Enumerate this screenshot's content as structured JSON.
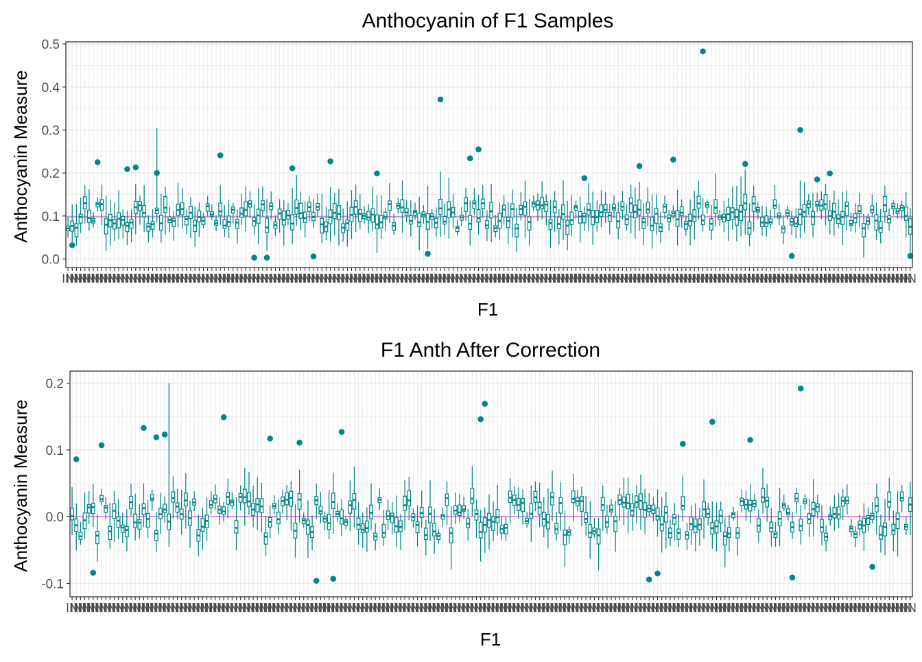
{
  "colors": {
    "box": "#00868B",
    "outlier": "#00868B",
    "reference_line": "#DA70D6",
    "grid": "#EBEBEB",
    "panel_border": "#333333",
    "tick_text": "#4D4D4D"
  },
  "chart_data": [
    {
      "type": "box",
      "title": "Anthocyanin of F1 Samples",
      "xlabel": "F1",
      "ylabel": "Anthocyanin Measure",
      "ylim": [
        -0.02,
        0.505
      ],
      "yticks": [
        0.0,
        0.1,
        0.2,
        0.3,
        0.4,
        0.5
      ],
      "ytick_labels": [
        "0.0",
        "0.1",
        "0.2",
        "0.3",
        "0.4",
        "0.5"
      ],
      "reference_line_y": 0.098,
      "grid": true,
      "n_groups": 200,
      "x_tick_labels_overlapping": "IN",
      "group_stats": {
        "median_range": [
          0.07,
          0.13
        ],
        "whisker_range": [
          0.0,
          0.305
        ]
      },
      "notable_outliers": [
        {
          "group_index": 150,
          "y": 0.483
        },
        {
          "group_index": 88,
          "y": 0.371
        },
        {
          "group_index": 173,
          "y": 0.3
        },
        {
          "group_index": 97,
          "y": 0.255
        },
        {
          "group_index": 95,
          "y": 0.234
        },
        {
          "group_index": 36,
          "y": 0.241
        },
        {
          "group_index": 7,
          "y": 0.225
        },
        {
          "group_index": 62,
          "y": 0.227
        },
        {
          "group_index": 143,
          "y": 0.231
        },
        {
          "group_index": 160,
          "y": 0.221
        },
        {
          "group_index": 14,
          "y": 0.209
        },
        {
          "group_index": 16,
          "y": 0.213
        },
        {
          "group_index": 53,
          "y": 0.211
        },
        {
          "group_index": 135,
          "y": 0.216
        },
        {
          "group_index": 21,
          "y": 0.2
        },
        {
          "group_index": 73,
          "y": 0.199
        },
        {
          "group_index": 180,
          "y": 0.199
        },
        {
          "group_index": 177,
          "y": 0.185
        },
        {
          "group_index": 122,
          "y": 0.188
        },
        {
          "group_index": 1,
          "y": 0.032
        },
        {
          "group_index": 44,
          "y": 0.003
        },
        {
          "group_index": 47,
          "y": 0.003
        },
        {
          "group_index": 58,
          "y": 0.006
        },
        {
          "group_index": 85,
          "y": 0.012
        },
        {
          "group_index": 171,
          "y": 0.007
        },
        {
          "group_index": 199,
          "y": 0.007
        }
      ]
    },
    {
      "type": "box",
      "title": "F1 Anth After Correction",
      "xlabel": "F1",
      "ylabel": "Anthocyanin Measure",
      "ylim": [
        -0.12,
        0.218
      ],
      "yticks": [
        -0.1,
        0.0,
        0.1,
        0.2
      ],
      "ytick_labels": [
        "-0.1",
        "0.0",
        "0.1",
        "0.2"
      ],
      "reference_line_y": 0.0,
      "grid": true,
      "n_groups": 200,
      "x_tick_labels_overlapping": "IN",
      "group_stats": {
        "median_range": [
          -0.03,
          0.03
        ],
        "whisker_range": [
          -0.105,
          0.2
        ]
      },
      "notable_outliers": [
        {
          "group_index": 173,
          "y": 0.192
        },
        {
          "group_index": 98,
          "y": 0.169
        },
        {
          "group_index": 97,
          "y": 0.146
        },
        {
          "group_index": 36,
          "y": 0.149
        },
        {
          "group_index": 152,
          "y": 0.142
        },
        {
          "group_index": 17,
          "y": 0.133
        },
        {
          "group_index": 64,
          "y": 0.127
        },
        {
          "group_index": 22,
          "y": 0.123
        },
        {
          "group_index": 20,
          "y": 0.119
        },
        {
          "group_index": 47,
          "y": 0.117
        },
        {
          "group_index": 161,
          "y": 0.115
        },
        {
          "group_index": 54,
          "y": 0.111
        },
        {
          "group_index": 7,
          "y": 0.107
        },
        {
          "group_index": 145,
          "y": 0.109
        },
        {
          "group_index": 1,
          "y": 0.086
        },
        {
          "group_index": 5,
          "y": -0.084
        },
        {
          "group_index": 58,
          "y": -0.096
        },
        {
          "group_index": 62,
          "y": -0.093
        },
        {
          "group_index": 137,
          "y": -0.094
        },
        {
          "group_index": 139,
          "y": -0.085
        },
        {
          "group_index": 171,
          "y": -0.091
        },
        {
          "group_index": 190,
          "y": -0.075
        }
      ]
    }
  ]
}
